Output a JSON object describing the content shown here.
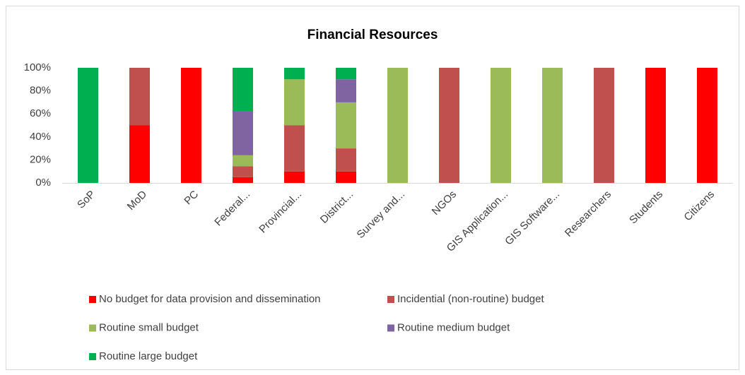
{
  "chart_data": {
    "type": "stacked_bar",
    "title": "Financial Resources",
    "categories": [
      "SoP",
      "MoD",
      "PC",
      "Federal...",
      "Provincial...",
      "District...",
      "Survey and...",
      "NGOs",
      "GIS Application...",
      "GIS Software...",
      "Researchers",
      "Students",
      "Citizens"
    ],
    "series": [
      {
        "name": "No budget for data provision and dissemination",
        "color": "#ff0000",
        "values": [
          0,
          50,
          100,
          5,
          10,
          10,
          0,
          0,
          0,
          0,
          0,
          100,
          100
        ]
      },
      {
        "name": "Incidential (non-routine) budget",
        "color": "#c0504d",
        "values": [
          0,
          50,
          0,
          9.5,
          40,
          20,
          0,
          100,
          0,
          0,
          100,
          0,
          0
        ]
      },
      {
        "name": "Routine small budget",
        "color": "#9bbb59",
        "values": [
          0,
          0,
          0,
          9.5,
          40,
          40,
          100,
          0,
          100,
          100,
          0,
          0,
          0
        ]
      },
      {
        "name": "Routine medium budget",
        "color": "#8064a2",
        "values": [
          0,
          0,
          0,
          38,
          0,
          20,
          0,
          0,
          0,
          0,
          0,
          0,
          0
        ]
      },
      {
        "name": "Routine large budget",
        "color": "#00b050",
        "values": [
          100,
          0,
          0,
          38,
          10,
          10,
          0,
          0,
          0,
          0,
          0,
          0,
          0
        ]
      }
    ],
    "ylim": [
      0,
      100
    ],
    "yticks": [
      {
        "value": 0,
        "label": "0%"
      },
      {
        "value": 20,
        "label": "20%"
      },
      {
        "value": 40,
        "label": "40%"
      },
      {
        "value": 60,
        "label": "60%"
      },
      {
        "value": 80,
        "label": "80%"
      },
      {
        "value": 100,
        "label": "100%"
      }
    ],
    "grid": false,
    "legend": "bottom"
  }
}
